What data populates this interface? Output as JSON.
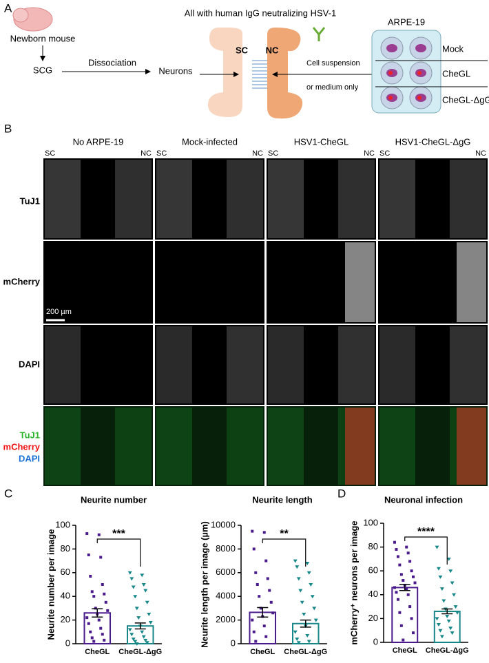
{
  "panel_a": {
    "label": "A",
    "mouse": "Newborn mouse",
    "scg": "SCG",
    "dissociation": "Dissociation",
    "neurons": "Neurons",
    "antibody": "All with human IgG neutralizing HSV-1",
    "sc": "SC",
    "nc": "NC",
    "cell_suspension": "Cell suspension",
    "medium": "or medium only",
    "plate": "ARPE-19",
    "wells": [
      "Mock",
      "CheGL",
      "CheGL-ΔgG"
    ]
  },
  "panel_b": {
    "label": "B",
    "columns": [
      {
        "title": "No ARPE-19",
        "sc": "SC",
        "nc": "NC"
      },
      {
        "title": "Mock-infected",
        "sc": "SC",
        "nc": "NC"
      },
      {
        "title": "HSV1-CheGL",
        "sc": "SC",
        "nc": "NC"
      },
      {
        "title": "HSV1-CheGL-ΔgG",
        "sc": "SC",
        "nc": "NC"
      }
    ],
    "rows": [
      "TuJ1",
      "mCherry",
      "DAPI"
    ],
    "merge": [
      "TuJ1",
      "mCherry",
      "DAPI"
    ],
    "scale_bar": "200 µm"
  },
  "panel_c": {
    "label": "C"
  },
  "panel_d": {
    "label": "D"
  },
  "chart_data": [
    {
      "type": "bar",
      "title": "Neurite number",
      "ylabel": "Neurite number per image",
      "categories": [
        "CheGL",
        "CheGL-ΔgG"
      ],
      "values": [
        26,
        15
      ],
      "errors": [
        3.5,
        2.5
      ],
      "colors": [
        "#4b1a8c",
        "#17878a"
      ],
      "points": [
        [
          93,
          92,
          75,
          73,
          57,
          50,
          44,
          42,
          40,
          35,
          30,
          28,
          25,
          22,
          20,
          17,
          13,
          10,
          8,
          5,
          3,
          2
        ],
        [
          60,
          58,
          55,
          50,
          48,
          45,
          40,
          35,
          30,
          25,
          22,
          18,
          15,
          12,
          10,
          8,
          6,
          4,
          3,
          2,
          1,
          0
        ]
      ],
      "significance": "***",
      "ylim": [
        0,
        100
      ],
      "yticks": [
        0,
        20,
        40,
        60,
        80,
        100
      ]
    },
    {
      "type": "bar",
      "title": "Neurite length",
      "ylabel": "Neurite length per image (µm)",
      "categories": [
        "CheGL",
        "CheGL-ΔgG"
      ],
      "values": [
        2650,
        1700
      ],
      "errors": [
        400,
        300
      ],
      "colors": [
        "#4b1a8c",
        "#17878a"
      ],
      "points": [
        [
          9500,
          9400,
          8000,
          7000,
          6000,
          5500,
          5000,
          4500,
          4000,
          3500,
          3000,
          2600,
          2300,
          2000,
          1500,
          1000,
          600,
          200
        ],
        [
          7000,
          6800,
          6500,
          6000,
          5500,
          5000,
          4500,
          4000,
          3500,
          3000,
          2500,
          2000,
          1500,
          1000,
          700,
          400,
          200,
          100
        ]
      ],
      "significance": "**",
      "ylim": [
        0,
        10000
      ],
      "yticks": [
        0,
        2000,
        4000,
        6000,
        8000,
        10000
      ]
    },
    {
      "type": "bar",
      "title": "Neuronal infection",
      "ylabel": "mCherry⁺ neurons per image",
      "categories": [
        "CheGL",
        "CheGL-ΔgG"
      ],
      "values": [
        46,
        26
      ],
      "errors": [
        2.5,
        2
      ],
      "colors": [
        "#4b1a8c",
        "#17878a"
      ],
      "points": [
        [
          84,
          80,
          78,
          75,
          72,
          68,
          65,
          60,
          57,
          55,
          52,
          50,
          48,
          46,
          45,
          42,
          40,
          36,
          30,
          25,
          20,
          14,
          8,
          2
        ],
        [
          80,
          70,
          62,
          60,
          55,
          50,
          45,
          40,
          35,
          30,
          28,
          25,
          22,
          20,
          18,
          15,
          12,
          10,
          8,
          5
        ]
      ],
      "significance": "****",
      "ylim": [
        0,
        100
      ],
      "yticks": [
        0,
        20,
        40,
        60,
        80,
        100
      ]
    }
  ]
}
